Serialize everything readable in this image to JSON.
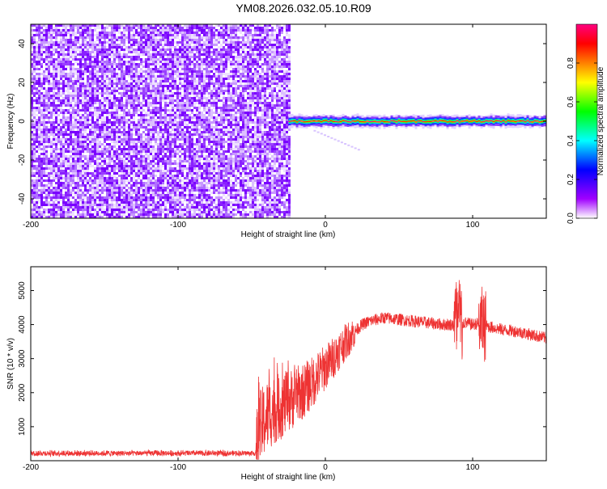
{
  "title": "YM08.2026.032.05.10.R09",
  "chart_data": [
    {
      "type": "heatmap",
      "xlabel": "Height of straight line (km)",
      "ylabel": "Frequency (Hz)",
      "xlim": [
        -200,
        150
      ],
      "ylim": [
        -50,
        50
      ],
      "xticks": [
        -200,
        -100,
        0,
        100
      ],
      "yticks": [
        -40,
        -20,
        0,
        20,
        40
      ],
      "noise_region_x": [
        -200,
        -25
      ],
      "signal_band": {
        "x_start": -25,
        "x_end": 150,
        "center_freq": 0,
        "half_width_hz": 3
      },
      "colorbar": {
        "label": "Normalized spectral amplitude",
        "range": [
          0.0,
          1.0
        ],
        "ticks": [
          0.0,
          0.2,
          0.4,
          0.6,
          0.8
        ],
        "tick_labels": [
          "0.0",
          "0.2",
          "0.4",
          "0.6",
          "0.8"
        ],
        "colormap": [
          "#ffffff",
          "#a000ff",
          "#0000ff",
          "#00ffff",
          "#00ff00",
          "#ffff00",
          "#ff8000",
          "#ff0000",
          "#ff0080"
        ]
      }
    },
    {
      "type": "line",
      "xlabel": "Height of straight line (km)",
      "ylabel": "SNR (10 * v/v)",
      "xlim": [
        -200,
        150
      ],
      "ylim": [
        0,
        5700
      ],
      "xticks": [
        -200,
        -100,
        0,
        100
      ],
      "yticks": [
        1000,
        2000,
        3000,
        4000,
        5000
      ],
      "color": "#ee3333",
      "series": [
        {
          "name": "SNR",
          "x": [
            -200,
            -150,
            -100,
            -70,
            -47,
            -45,
            -40,
            -35,
            -30,
            -25,
            -20,
            -15,
            -10,
            -5,
            0,
            5,
            10,
            15,
            20,
            25,
            30,
            40,
            50,
            60,
            70,
            80,
            85,
            90,
            95,
            100,
            105,
            110,
            115,
            120,
            130,
            140,
            150
          ],
          "values": [
            220,
            220,
            220,
            220,
            220,
            900,
            1300,
            1500,
            1600,
            1750,
            1900,
            2050,
            2250,
            2500,
            2750,
            3000,
            3300,
            3550,
            3800,
            4000,
            4100,
            4200,
            4150,
            4100,
            4050,
            4000,
            4000,
            4050,
            4050,
            4000,
            4050,
            3950,
            3900,
            3850,
            3800,
            3700,
            3600
          ]
        }
      ]
    }
  ]
}
